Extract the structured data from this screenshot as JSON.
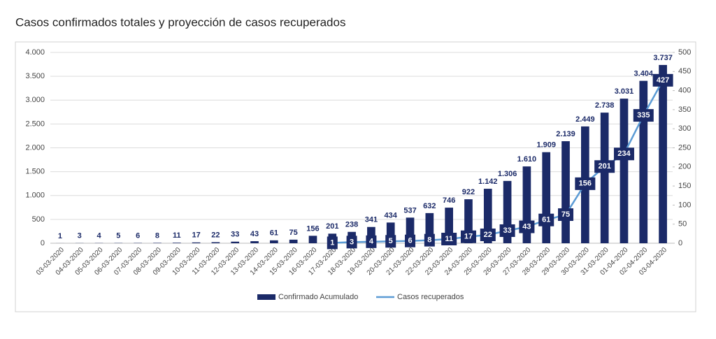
{
  "chart_data": {
    "type": "combo",
    "title": "Casos confirmados totales y proyección de casos recuperados",
    "categories": [
      "03-03-2020",
      "04-03-2020",
      "05-03-2020",
      "06-03-2020",
      "07-03-2020",
      "08-03-2020",
      "09-03-2020",
      "10-03-2020",
      "11-03-2020",
      "12-03-2020",
      "13-03-2020",
      "14-03-2020",
      "15-03-2020",
      "16-03-2020",
      "17-03-2020",
      "18-03-2020",
      "19-03-2020",
      "20-03-2020",
      "21-03-2020",
      "22-03-2020",
      "23-03-2020",
      "24-03-2020",
      "25-03-2020",
      "26-03-2020",
      "27-03-2020",
      "28-03-2020",
      "29-03-2020",
      "30-03-2020",
      "31-03-2020",
      "01-04-2020",
      "02-04-2020",
      "03-04-2020"
    ],
    "series": [
      {
        "name": "Confirmado Acumulado",
        "type": "bar",
        "color": "#1b2a68",
        "values": [
          1,
          3,
          4,
          5,
          6,
          8,
          11,
          17,
          22,
          33,
          43,
          61,
          75,
          156,
          201,
          238,
          341,
          434,
          537,
          632,
          746,
          922,
          1142,
          1306,
          1610,
          1909,
          2139,
          2449,
          2738,
          3031,
          3404,
          3737
        ],
        "value_labels": [
          "1",
          "3",
          "4",
          "5",
          "6",
          "8",
          "11",
          "17",
          "22",
          "33",
          "43",
          "61",
          "75",
          "156",
          "201",
          "238",
          "341",
          "434",
          "537",
          "632",
          "746",
          "922",
          "1.142",
          "1.306",
          "1.610",
          "1.909",
          "2.139",
          "2.449",
          "2.738",
          "3.031",
          "3.404",
          "3.737"
        ]
      },
      {
        "name": "Casos recuperados",
        "type": "line",
        "axis": "y2",
        "color": "#5b9bd5",
        "values": [
          null,
          null,
          null,
          null,
          null,
          null,
          null,
          null,
          null,
          null,
          null,
          null,
          null,
          null,
          1,
          3,
          4,
          5,
          6,
          8,
          11,
          17,
          22,
          33,
          43,
          61,
          75,
          156,
          201,
          234,
          335,
          427
        ]
      }
    ],
    "ylim": [
      0,
      4000
    ],
    "yticks": [
      0,
      500,
      {
        "value": 1000,
        "label": "1.000"
      },
      {
        "value": 1500,
        "label": "1.500"
      },
      {
        "value": 2000,
        "label": "2.000"
      },
      {
        "value": 2500,
        "label": "2.500"
      },
      {
        "value": 3000,
        "label": "3.000"
      },
      {
        "value": 3500,
        "label": "3.500"
      },
      {
        "value": 4000,
        "label": "4.000"
      }
    ],
    "y2lim": [
      0,
      500
    ],
    "y2ticks": [
      0,
      50,
      100,
      150,
      200,
      250,
      300,
      350,
      400,
      450,
      500
    ],
    "grid": true,
    "legend": "bottom"
  }
}
